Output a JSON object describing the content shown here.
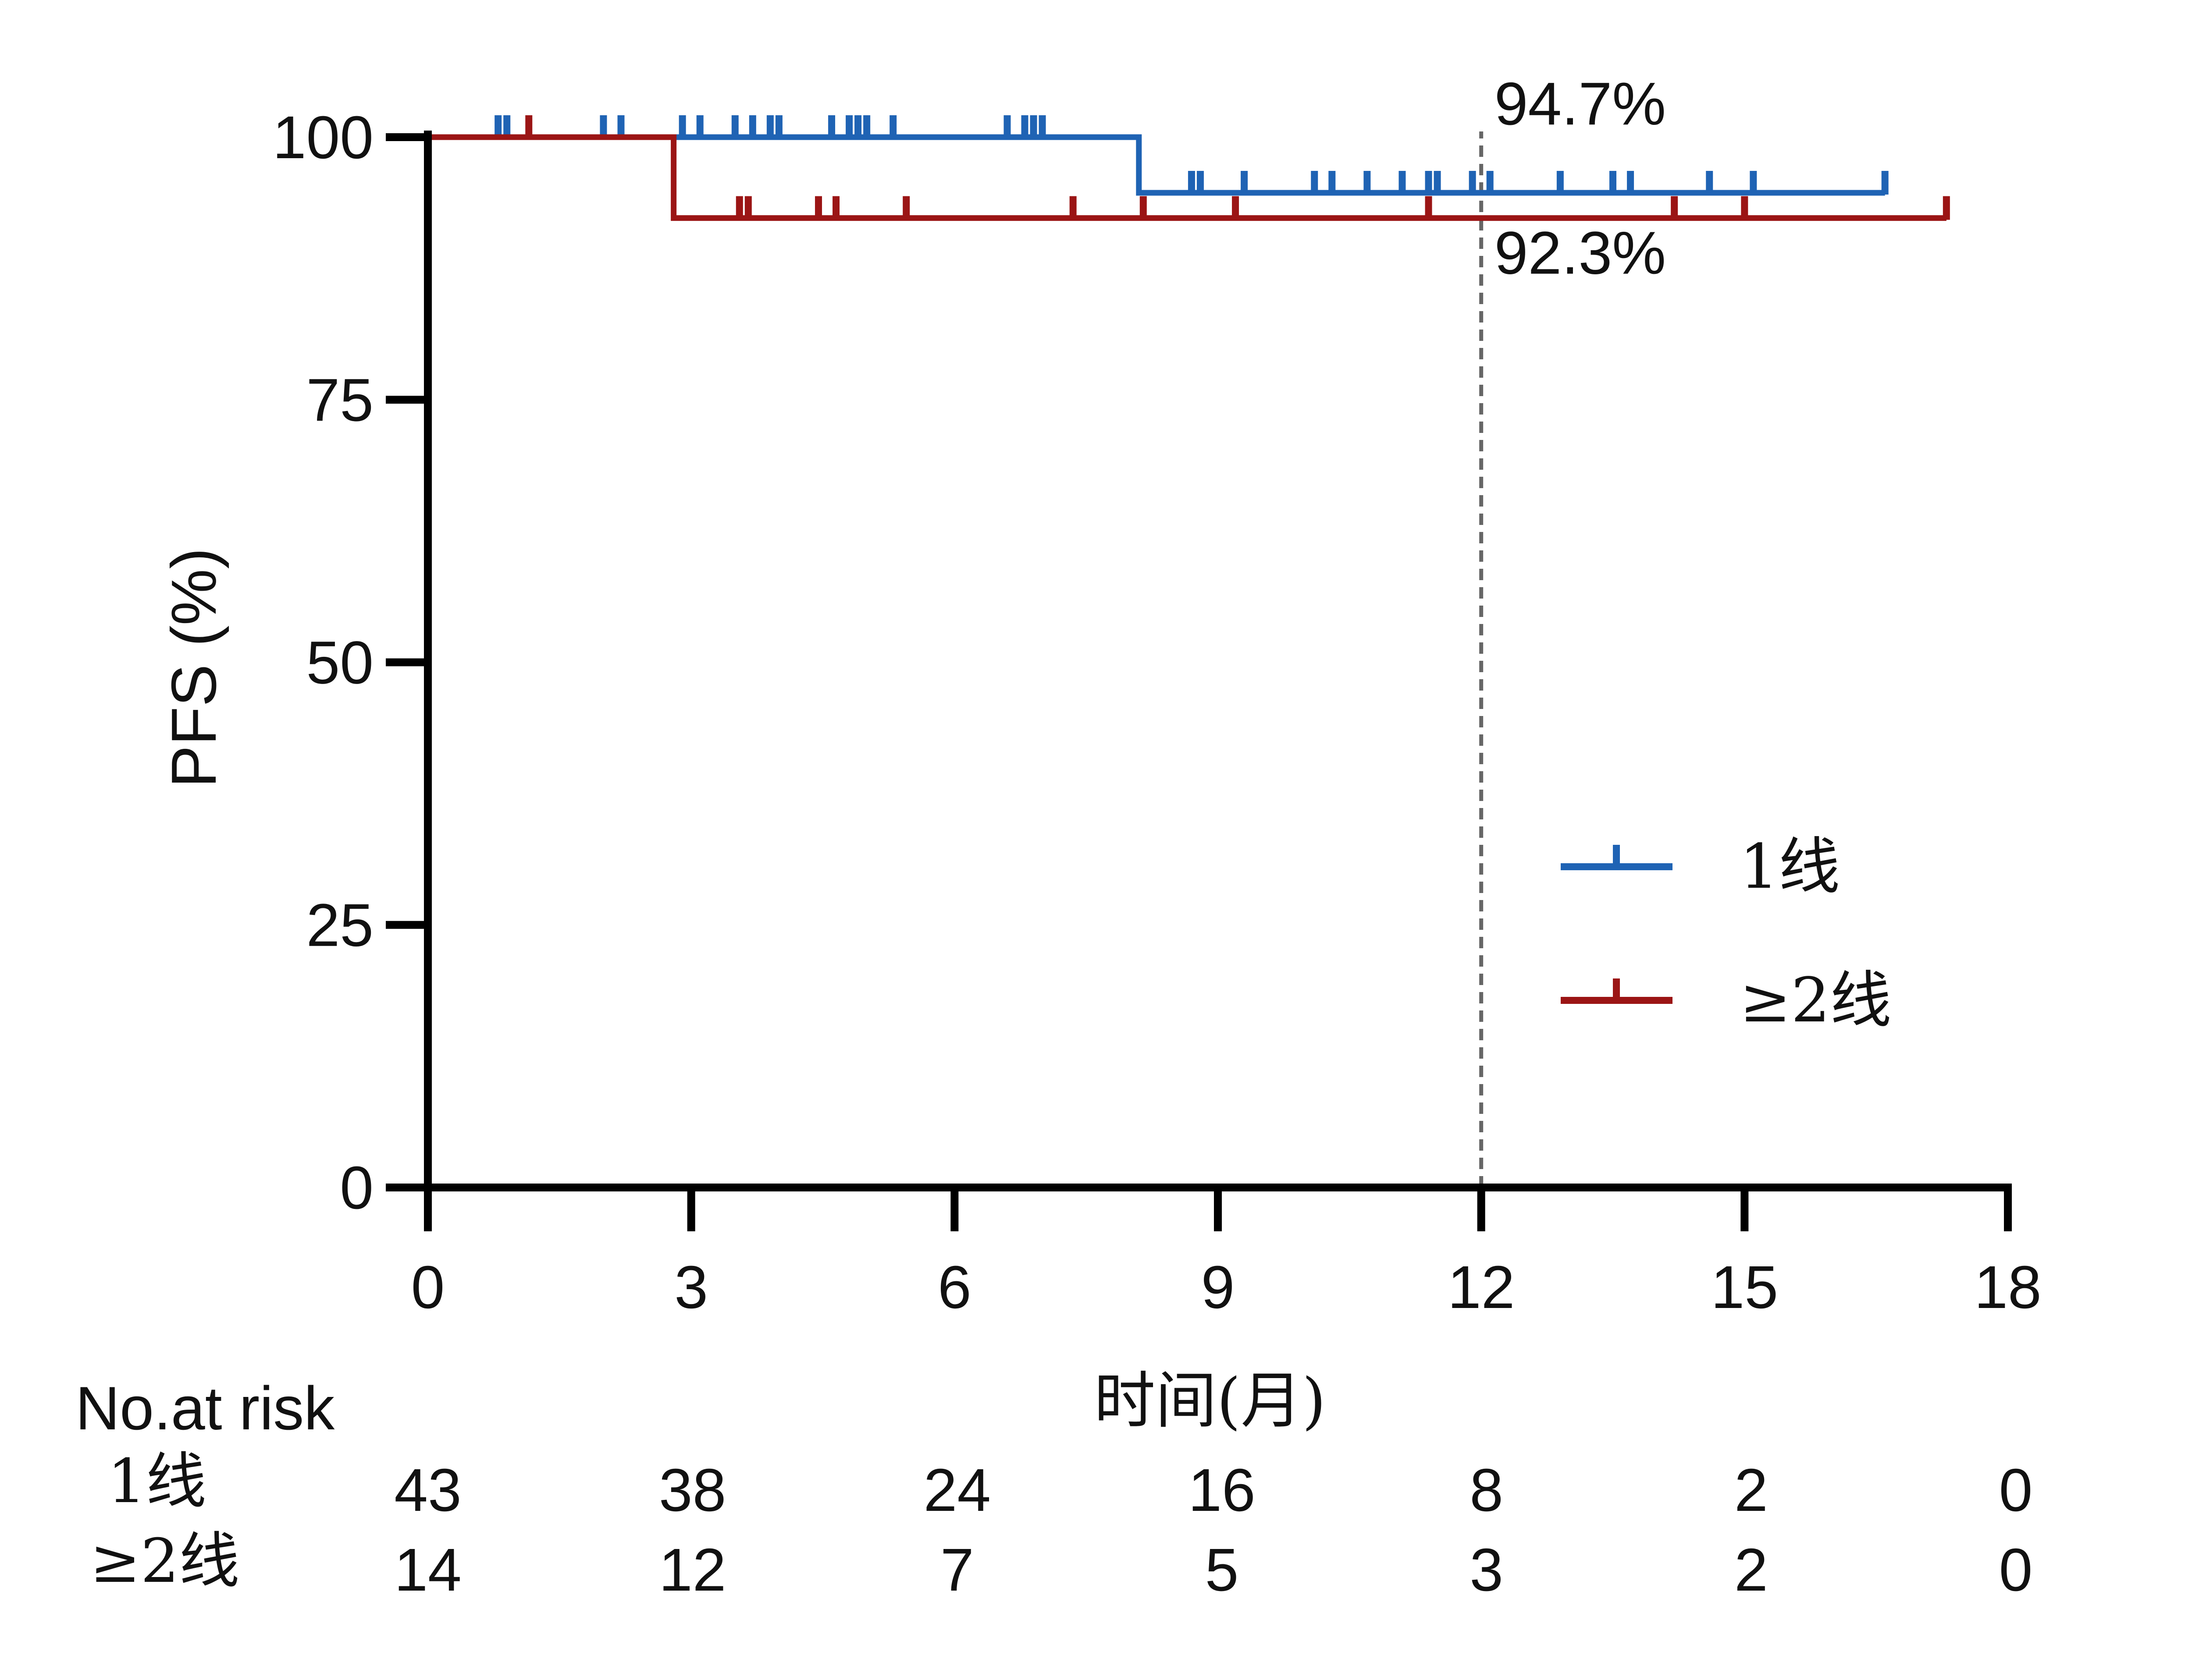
{
  "chart_data": {
    "type": "line",
    "subtype": "kaplan-meier",
    "title": "",
    "xlabel": "时间(月)",
    "ylabel": "PFS (%)",
    "xlim": [
      0,
      18
    ],
    "ylim": [
      0,
      100
    ],
    "xticks": [
      0,
      3,
      6,
      9,
      12,
      15,
      18
    ],
    "yticks": [
      0,
      25,
      50,
      75,
      100
    ],
    "grid": false,
    "legend_position": "right-middle",
    "reference_line": {
      "x": 12,
      "style": "dashed",
      "color": "#666666"
    },
    "annotations": [
      {
        "text": "94.7%",
        "x": 12.15,
        "y": 101.2
      },
      {
        "text": "92.3%",
        "x": 12.15,
        "y": 87.0
      }
    ],
    "series": [
      {
        "name": "1线",
        "color": "#1f63b4",
        "steps": [
          {
            "x": 0,
            "y": 100
          },
          {
            "x": 8.1,
            "y": 94.7
          }
        ],
        "end_x": 16.6,
        "censored": [
          0.8,
          0.9,
          2.0,
          2.2,
          2.9,
          3.1,
          3.5,
          3.7,
          3.9,
          4.0,
          4.6,
          4.8,
          4.9,
          5.0,
          5.3,
          6.6,
          6.8,
          6.9,
          7.0,
          8.7,
          8.8,
          9.3,
          10.1,
          10.3,
          10.7,
          11.1,
          11.4,
          11.5,
          11.9,
          12.1,
          12.9,
          13.5,
          13.7,
          14.6,
          15.1,
          16.6
        ]
      },
      {
        "name": "≥2线",
        "color": "#9b1515",
        "steps": [
          {
            "x": 0,
            "y": 100
          },
          {
            "x": 2.8,
            "y": 92.3
          }
        ],
        "end_x": 17.3,
        "censored": [
          1.15,
          3.55,
          3.65,
          4.45,
          4.65,
          5.45,
          7.35,
          8.15,
          9.2,
          11.4,
          14.2,
          15.0,
          17.3
        ]
      }
    ]
  },
  "risk_table": {
    "title": "No.at risk",
    "rows": [
      {
        "label": "1线",
        "values": [
          "43",
          "38",
          "24",
          "16",
          "8",
          "2",
          "0"
        ]
      },
      {
        "label": "≥2线",
        "values": [
          "14",
          "12",
          "7",
          "5",
          "3",
          "2",
          "0"
        ]
      }
    ]
  },
  "colors": {
    "axis": "#000000",
    "text": "#111111"
  }
}
